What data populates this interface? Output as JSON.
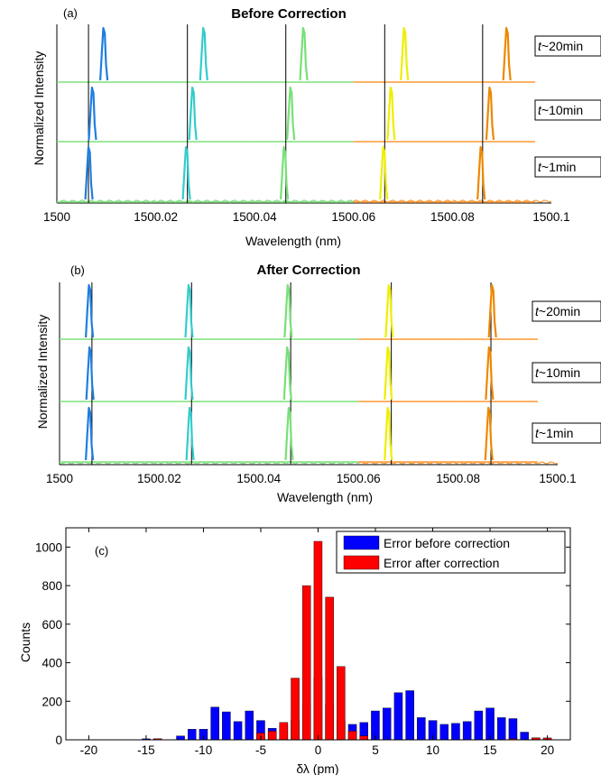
{
  "chart_data": [
    {
      "type": "line",
      "panel_label": "(a)",
      "title": "Before Correction",
      "xlabel": "Wavelength  (nm)",
      "ylabel": "Normalized Intensity",
      "x_ticks": [
        "1500",
        "1500.02",
        "1500.04",
        "1500.06",
        "1500.08",
        "1500.1"
      ],
      "xlim": [
        1500,
        1500.1
      ],
      "row_labels": [
        {
          "prefix": "t",
          "text": "~20min"
        },
        {
          "prefix": "t",
          "text": "~10min"
        },
        {
          "prefix": "t",
          "text": "~1min"
        }
      ],
      "reference_lines": [
        1500.0064,
        1500.0264,
        1500.0463,
        1500.0663,
        1500.0861
      ],
      "baseline_colors": [
        "#7fe07f",
        "#7fe07f",
        "#7fe07f",
        "#ff9933",
        "#ff9933"
      ],
      "peak_colors": [
        "#1e7ee0",
        "#33cccc",
        "#77e077",
        "#eeee00",
        "#ee8800"
      ],
      "series": [
        {
          "time": "~20min",
          "peaks": [
            1500.0095,
            1500.0297,
            1500.0499,
            1500.0703,
            1500.091
          ]
        },
        {
          "time": "~10min",
          "peaks": [
            1500.0072,
            1500.0275,
            1500.0473,
            1500.0676,
            1500.0876
          ]
        },
        {
          "time": "~1min",
          "peaks": [
            1500.0065,
            1500.0262,
            1500.046,
            1500.0661,
            1500.0858
          ]
        }
      ]
    },
    {
      "type": "line",
      "panel_label": "(b)",
      "title": "After Correction",
      "xlabel": "Wavelength  (nm)",
      "ylabel": "Normalized Intensity",
      "x_ticks": [
        "1500",
        "1500.02",
        "1500.04",
        "1500.06",
        "1500.08",
        "1500.1"
      ],
      "xlim": [
        1500,
        1500.1
      ],
      "row_labels": [
        {
          "prefix": "t",
          "text": "~20min"
        },
        {
          "prefix": "t",
          "text": "~10min"
        },
        {
          "prefix": "t",
          "text": "~1min"
        }
      ],
      "reference_lines": [
        1500.0065,
        1500.0265,
        1500.0464,
        1500.0666,
        1500.0866
      ],
      "baseline_colors": [
        "#7fe07f",
        "#7fe07f",
        "#7fe07f",
        "#ff9933",
        "#ff9933"
      ],
      "peak_colors": [
        "#1e7ee0",
        "#33cccc",
        "#77e077",
        "#eeee00",
        "#ee8800"
      ],
      "series": [
        {
          "time": "~20min",
          "peaks": [
            1500.006,
            1500.026,
            1500.0459,
            1500.0662,
            1500.0869
          ]
        },
        {
          "time": "~10min",
          "peaks": [
            1500.0061,
            1500.026,
            1500.0458,
            1500.066,
            1500.0863
          ]
        },
        {
          "time": "~1min",
          "peaks": [
            1500.006,
            1500.0262,
            1500.0461,
            1500.066,
            1500.0862
          ]
        }
      ]
    },
    {
      "type": "bar",
      "panel_label": "(c)",
      "xlabel": "δλ (pm)",
      "ylabel": "Counts",
      "xlim": [
        -22,
        22
      ],
      "ylim": [
        0,
        1100
      ],
      "x_ticks": [
        "-20",
        "-15",
        "-10",
        "-5",
        "0",
        "5",
        "10",
        "15",
        "20"
      ],
      "y_ticks": [
        "0",
        "200",
        "400",
        "600",
        "800",
        "1000"
      ],
      "legend_position": "top-right",
      "series": [
        {
          "name": "Error before correction",
          "color": "#0000ff",
          "x": [
            -15,
            -14,
            -12,
            -11,
            -10,
            -9,
            -8,
            -7,
            -6,
            -5,
            -4,
            -3,
            -2,
            -1,
            0,
            1,
            2,
            3,
            4,
            5,
            6,
            7,
            8,
            9,
            10,
            11,
            12,
            13,
            14,
            15,
            16,
            17,
            18,
            19,
            20
          ],
          "values": [
            5,
            5,
            20,
            55,
            55,
            170,
            145,
            95,
            150,
            100,
            60,
            75,
            100,
            185,
            325,
            185,
            100,
            80,
            90,
            150,
            165,
            245,
            255,
            115,
            100,
            80,
            85,
            95,
            150,
            165,
            115,
            110,
            40,
            10,
            5
          ]
        },
        {
          "name": "Error after correction",
          "color": "#ff0000",
          "x": [
            -14,
            -5,
            -4,
            -3,
            -2,
            -1,
            0,
            1,
            2,
            3,
            4,
            17,
            19,
            20
          ],
          "values": [
            5,
            35,
            45,
            90,
            320,
            800,
            1030,
            740,
            380,
            45,
            20,
            5,
            10,
            10
          ]
        }
      ]
    }
  ]
}
